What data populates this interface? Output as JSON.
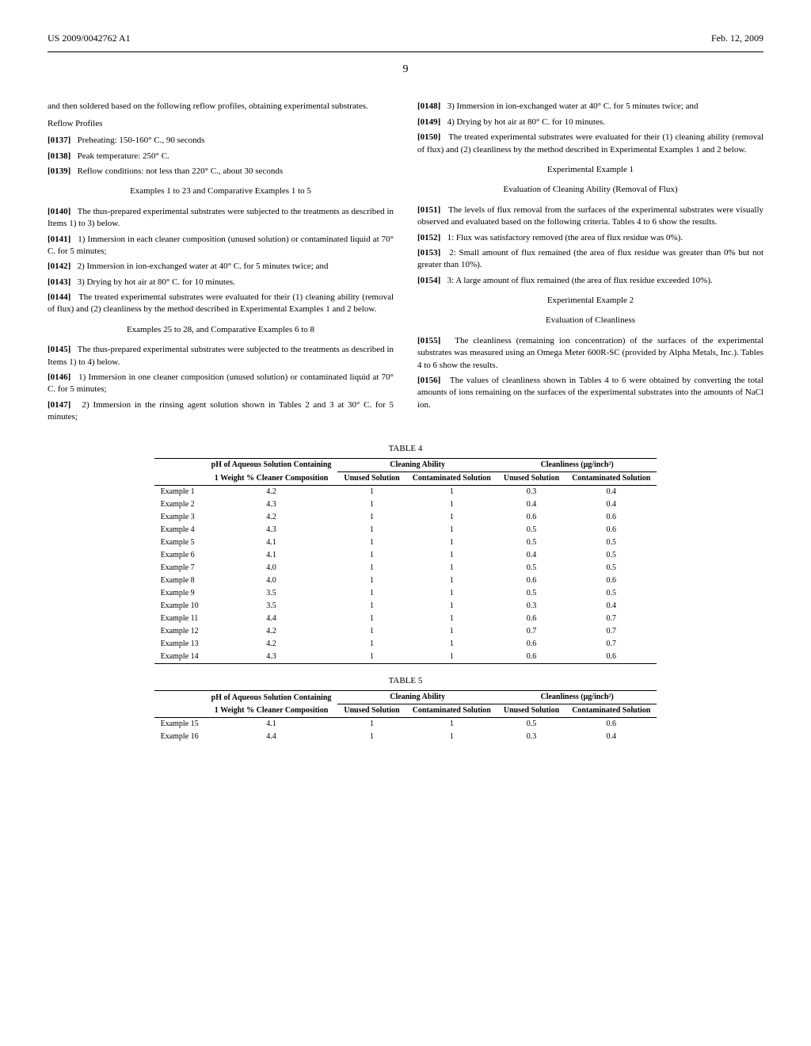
{
  "header": {
    "pub_number": "US 2009/0042762 A1",
    "pub_date": "Feb. 12, 2009",
    "page": "9"
  },
  "left": {
    "intro": "and then soldered based on the following reflow profiles, obtaining experimental substrates.",
    "reflow_label": "Reflow Profiles",
    "p0137": "Preheating: 150-160° C., 90 seconds",
    "p0138": "Peak temperature: 250° C.",
    "p0139": "Reflow conditions: not less than 220° C., about 30 seconds",
    "ex1_title": "Examples 1 to 23 and Comparative Examples 1 to 5",
    "p0140": "The thus-prepared experimental substrates were subjected to the treatments as described in Items 1) to 3) below.",
    "p0141": "1) Immersion in each cleaner composition (unused solution) or contaminated liquid at 70° C. for 5 minutes;",
    "p0142": "2) Immersion in ion-exchanged water at 40° C. for 5 minutes twice; and",
    "p0143": "3) Drying by hot air at 80° C. for 10 minutes.",
    "p0144": "The treated experimental substrates were evaluated for their (1) cleaning ability (removal of flux) and (2) cleanliness by the method described in Experimental Examples 1 and 2 below.",
    "ex2_title": "Examples 25 to 28, and Comparative Examples 6 to 8",
    "p0145": "The thus-prepared experimental substrates were subjected to the treatments as described in Items 1) to 4) below.",
    "p0146": "1) Immersion in one cleaner composition (unused solution) or contaminated liquid at 70° C. for 5 minutes;",
    "p0147": "2) Immersion in the rinsing agent solution shown in Tables 2 and 3 at 30° C. for 5 minutes;"
  },
  "right": {
    "p0148": "3) Immersion in ion-exchanged water at 40° C. for 5 minutes twice; and",
    "p0149": "4) Drying by hot air at 80° C. for 10 minutes.",
    "p0150": "The treated experimental substrates were evaluated for their (1) cleaning ability (removal of flux) and (2) cleanliness by the method described in Experimental Examples 1 and 2 below.",
    "exp1_title": "Experimental Example 1",
    "exp1_sub": "Evaluation of Cleaning Ability (Removal of Flux)",
    "p0151": "The levels of flux removal from the surfaces of the experimental substrates were visually observed and evaluated based on the following criteria. Tables 4 to 6 show the results.",
    "p0152": "1: Flux was satisfactory removed (the area of flux residue was 0%).",
    "p0153": "2: Small amount of flux remained (the area of flux residue was greater than 0% but not greater than 10%).",
    "p0154": "3: A large amount of flux remained (the area of flux residue exceeded 10%).",
    "exp2_title": "Experimental Example 2",
    "exp2_sub": "Evaluation of Cleanliness",
    "p0155": "The cleanliness (remaining ion concentration) of the surfaces of the experimental substrates was measured using an Omega Meter 600R-SC (provided by Alpha Metals, Inc.). Tables 4 to 6 show the results.",
    "p0156": "The values of cleanliness shown in Tables 4 to 6 were obtained by converting the total amounts of ions remaining on the surfaces of the experimental substrates into the amounts of NaCl ion."
  },
  "table4": {
    "caption": "TABLE 4",
    "headers": {
      "ph": "pH of Aqueous Solution Containing",
      "ph2": "1 Weight % Cleaner Composition",
      "cleaning": "Cleaning Ability",
      "cleanliness": "Cleanliness (μg/inch²)",
      "unused": "Unused Solution",
      "contaminated": "Contaminated Solution"
    },
    "rows": [
      {
        "label": "Example 1",
        "ph": "4.2",
        "cu": "1",
        "cc": "1",
        "nu": "0.3",
        "nc": "0.4"
      },
      {
        "label": "Example 2",
        "ph": "4.3",
        "cu": "1",
        "cc": "1",
        "nu": "0.4",
        "nc": "0.4"
      },
      {
        "label": "Example 3",
        "ph": "4.2",
        "cu": "1",
        "cc": "1",
        "nu": "0.6",
        "nc": "0.6"
      },
      {
        "label": "Example 4",
        "ph": "4.3",
        "cu": "1",
        "cc": "1",
        "nu": "0.5",
        "nc": "0.6"
      },
      {
        "label": "Example 5",
        "ph": "4.1",
        "cu": "1",
        "cc": "1",
        "nu": "0.5",
        "nc": "0.5"
      },
      {
        "label": "Example 6",
        "ph": "4.1",
        "cu": "1",
        "cc": "1",
        "nu": "0.4",
        "nc": "0.5"
      },
      {
        "label": "Example 7",
        "ph": "4.0",
        "cu": "1",
        "cc": "1",
        "nu": "0.5",
        "nc": "0.5"
      },
      {
        "label": "Example 8",
        "ph": "4.0",
        "cu": "1",
        "cc": "1",
        "nu": "0.6",
        "nc": "0.6"
      },
      {
        "label": "Example 9",
        "ph": "3.5",
        "cu": "1",
        "cc": "1",
        "nu": "0.5",
        "nc": "0.5"
      },
      {
        "label": "Example 10",
        "ph": "3.5",
        "cu": "1",
        "cc": "1",
        "nu": "0.3",
        "nc": "0.4"
      },
      {
        "label": "Example 11",
        "ph": "4.4",
        "cu": "1",
        "cc": "1",
        "nu": "0.6",
        "nc": "0.7"
      },
      {
        "label": "Example 12",
        "ph": "4.2",
        "cu": "1",
        "cc": "1",
        "nu": "0.7",
        "nc": "0.7"
      },
      {
        "label": "Example 13",
        "ph": "4.2",
        "cu": "1",
        "cc": "1",
        "nu": "0.6",
        "nc": "0.7"
      },
      {
        "label": "Example 14",
        "ph": "4.3",
        "cu": "1",
        "cc": "1",
        "nu": "0.6",
        "nc": "0.6"
      }
    ]
  },
  "table5": {
    "caption": "TABLE 5",
    "rows": [
      {
        "label": "Example 15",
        "ph": "4.1",
        "cu": "1",
        "cc": "1",
        "nu": "0.5",
        "nc": "0.6"
      },
      {
        "label": "Example 16",
        "ph": "4.4",
        "cu": "1",
        "cc": "1",
        "nu": "0.3",
        "nc": "0.4"
      }
    ]
  },
  "labels": {
    "l0137": "[0137]",
    "l0138": "[0138]",
    "l0139": "[0139]",
    "l0140": "[0140]",
    "l0141": "[0141]",
    "l0142": "[0142]",
    "l0143": "[0143]",
    "l0144": "[0144]",
    "l0145": "[0145]",
    "l0146": "[0146]",
    "l0147": "[0147]",
    "l0148": "[0148]",
    "l0149": "[0149]",
    "l0150": "[0150]",
    "l0151": "[0151]",
    "l0152": "[0152]",
    "l0153": "[0153]",
    "l0154": "[0154]",
    "l0155": "[0155]",
    "l0156": "[0156]"
  }
}
